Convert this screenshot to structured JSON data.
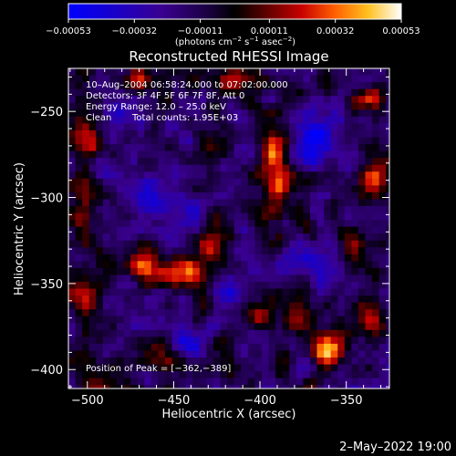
{
  "chart_data": {
    "type": "heatmap",
    "title": "Reconstructed RHESSI Image",
    "xlabel": "Heliocentric X (arcsec)",
    "ylabel": "Heliocentric Y (arcsec)",
    "xlim": [
      -511,
      -325
    ],
    "ylim": [
      -411,
      -225
    ],
    "x_ticks": [
      {
        "value": -500,
        "label": "−500"
      },
      {
        "value": -450,
        "label": "−450"
      },
      {
        "value": -400,
        "label": "−400"
      },
      {
        "value": -350,
        "label": "−350"
      }
    ],
    "y_ticks": [
      {
        "value": -250,
        "label": "−250"
      },
      {
        "value": -300,
        "label": "−300"
      },
      {
        "value": -350,
        "label": "−350"
      },
      {
        "value": -400,
        "label": "−400"
      }
    ],
    "colorbar": {
      "min": -0.00053,
      "max": 0.00053,
      "tick_labels": [
        "−0.00053",
        "−0.00032",
        "−0.00011",
        "0.00011",
        "0.00032",
        "0.00053"
      ],
      "tick_values": [
        -0.00053,
        -0.00032,
        -0.00011,
        0.00011,
        0.00032,
        0.00053
      ],
      "unit_prefix": "(photons cm",
      "unit_sup1": "−2",
      "unit_mid1": " s",
      "unit_sup2": "−1",
      "unit_mid2": " asec",
      "unit_sup3": "−2",
      "unit_suffix": ")"
    },
    "grid": {
      "nx": 47,
      "ny": 47,
      "cell_arcsec": 4,
      "x0": -511,
      "y0": -225,
      "seed": 7,
      "hotspots": [
        {
          "x": -391,
          "y": -290,
          "amp": 0.00046,
          "sx": 6,
          "sy": 14
        },
        {
          "x": -393,
          "y": -270,
          "amp": 0.00028,
          "sx": 5,
          "sy": 6
        },
        {
          "x": -362,
          "y": -389,
          "amp": 0.00053,
          "sx": 7,
          "sy": 7
        },
        {
          "x": -445,
          "y": -345,
          "amp": 0.0004,
          "sx": 12,
          "sy": 6
        },
        {
          "x": -430,
          "y": -328,
          "amp": 0.00033,
          "sx": 4,
          "sy": 8
        },
        {
          "x": -467,
          "y": -338,
          "amp": 0.00032,
          "sx": 6,
          "sy": 8
        },
        {
          "x": -503,
          "y": -303,
          "amp": 0.0003,
          "sx": 5,
          "sy": 18
        },
        {
          "x": -500,
          "y": -262,
          "amp": 0.00028,
          "sx": 6,
          "sy": 7
        },
        {
          "x": -470,
          "y": -232,
          "amp": 0.0003,
          "sx": 8,
          "sy": 5
        },
        {
          "x": -415,
          "y": -232,
          "amp": 0.00022,
          "sx": 10,
          "sy": 5
        },
        {
          "x": -338,
          "y": -242,
          "amp": 0.00034,
          "sx": 6,
          "sy": 6
        },
        {
          "x": -333,
          "y": -290,
          "amp": 0.0003,
          "sx": 5,
          "sy": 9
        },
        {
          "x": -345,
          "y": -330,
          "amp": 0.00022,
          "sx": 6,
          "sy": 6
        },
        {
          "x": -392,
          "y": -370,
          "amp": 0.00024,
          "sx": 12,
          "sy": 6
        },
        {
          "x": -455,
          "y": -395,
          "amp": 0.00024,
          "sx": 10,
          "sy": 5
        },
        {
          "x": -335,
          "y": -367,
          "amp": 0.0003,
          "sx": 5,
          "sy": 7
        },
        {
          "x": -500,
          "y": -360,
          "amp": 0.00022,
          "sx": 6,
          "sy": 10
        }
      ],
      "coldspots": [
        {
          "x": -462,
          "y": -300,
          "amp": -0.0003,
          "sx": 10,
          "sy": 10
        },
        {
          "x": -365,
          "y": -265,
          "amp": -0.0003,
          "sx": 10,
          "sy": 12
        },
        {
          "x": -370,
          "y": -335,
          "amp": -0.0003,
          "sx": 9,
          "sy": 7
        },
        {
          "x": -418,
          "y": -355,
          "amp": -0.00022,
          "sx": 7,
          "sy": 8
        },
        {
          "x": -440,
          "y": -385,
          "amp": -0.00028,
          "sx": 7,
          "sy": 5
        },
        {
          "x": -480,
          "y": -252,
          "amp": -0.0002,
          "sx": 8,
          "sy": 6
        }
      ],
      "noise_amp": 0.00022
    }
  },
  "info": {
    "time_range": "10–Aug–2004 06:58:24.000 to 07:02:00.000",
    "detectors": "Detectors: 3F 4F 5F 6F 7F 8F, Att 0",
    "energy": "Energy Range: 12.0 – 25.0 keV",
    "method": "Clean",
    "counts": "Total counts: 1.95E+03",
    "peak": "Position of Peak = [−362,−389]"
  },
  "footer": {
    "date": "2–May–2022 19:00"
  },
  "colors": {
    "background": "#000000",
    "text": "#ffffff"
  }
}
